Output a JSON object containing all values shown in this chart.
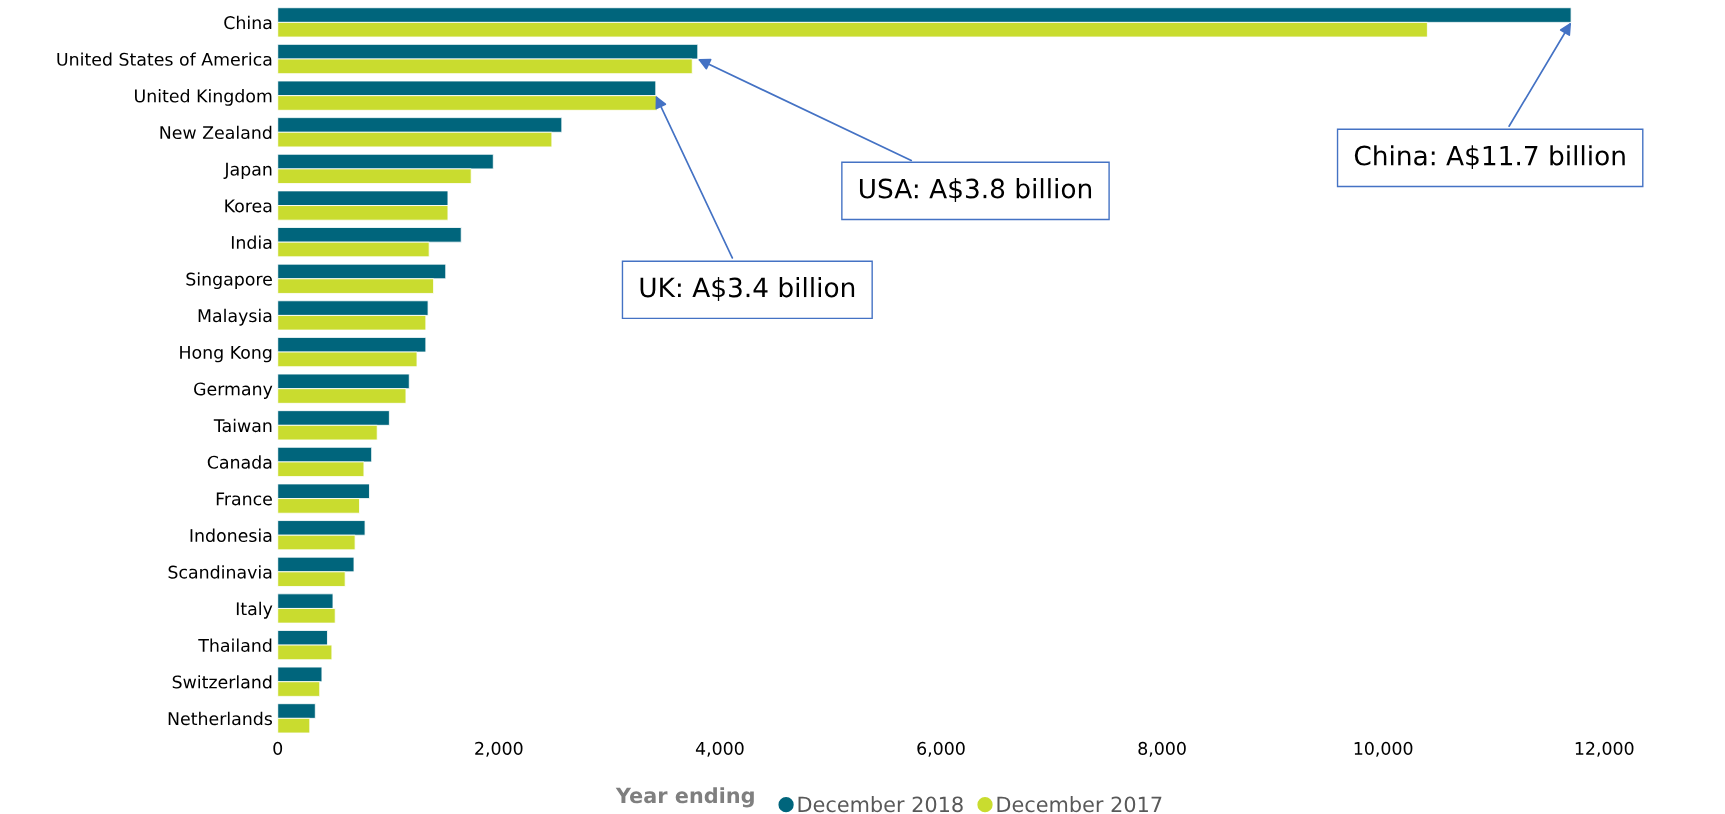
{
  "chart_data": {
    "type": "bar",
    "orientation": "horizontal",
    "categories": [
      "China",
      "United States of America",
      "United Kingdom",
      "New Zealand",
      "Japan",
      "Korea",
      "India",
      "Singapore",
      "Malaysia",
      "Hong Kong",
      "Germany",
      "Taiwan",
      "Canada",
      "France",
      "Indonesia",
      "Scandinavia",
      "Italy",
      "Thailand",
      "Switzerland",
      "Netherlands"
    ],
    "series": [
      {
        "name": "December 2018",
        "color": "#00657c",
        "values": [
          11700,
          3800,
          3420,
          2570,
          1950,
          1540,
          1660,
          1520,
          1360,
          1340,
          1190,
          1010,
          850,
          830,
          790,
          690,
          500,
          450,
          400,
          340
        ]
      },
      {
        "name": "December 2017",
        "color": "#c9dc2f",
        "values": [
          10400,
          3750,
          3430,
          2480,
          1750,
          1540,
          1370,
          1410,
          1340,
          1260,
          1160,
          900,
          780,
          740,
          700,
          610,
          520,
          490,
          380,
          290
        ]
      }
    ],
    "xlim": [
      0,
      12000
    ],
    "xticks": [
      {
        "value": 0,
        "label": "0"
      },
      {
        "value": 2000,
        "label": "2,000"
      },
      {
        "value": 4000,
        "label": "4,000"
      },
      {
        "value": 6000,
        "label": "6,000"
      },
      {
        "value": 8000,
        "label": "8,000"
      },
      {
        "value": 10000,
        "label": "10,000"
      },
      {
        "value": 12000,
        "label": "12,000"
      }
    ],
    "grid": false,
    "legend": "bottom",
    "legend_title": "Year ending",
    "marker": "circle",
    "annotations": [
      {
        "text": "China: A$11.7 billion",
        "x": 11700,
        "y": "China"
      },
      {
        "text": "USA: A$3.8 billion",
        "x": 3800,
        "y": "United States of America"
      },
      {
        "text": "UK: A$3.4 billion",
        "x": 3420,
        "y": "United Kingdom"
      }
    ]
  }
}
